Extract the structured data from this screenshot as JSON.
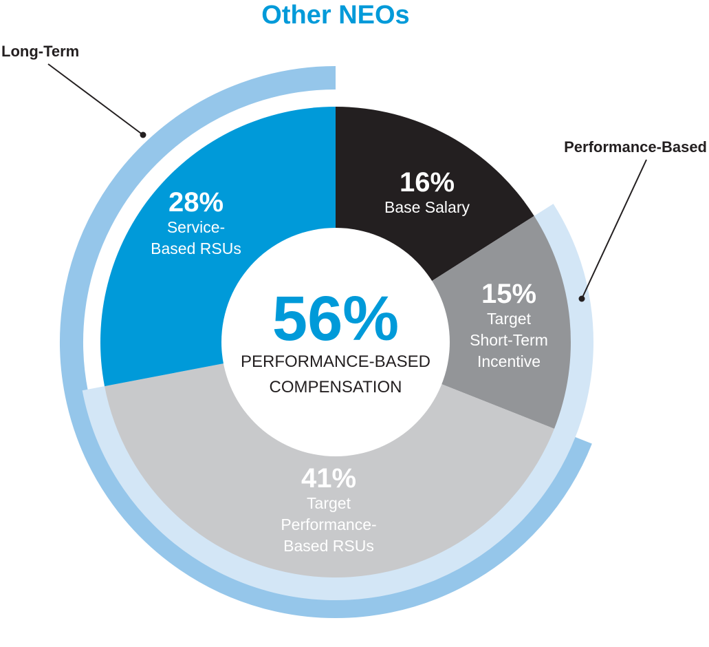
{
  "chart_data": {
    "type": "pie",
    "title": "Other NEOs",
    "colors": {
      "title": "#009ad9",
      "base_salary": "#231f20",
      "target_sti": "#939598",
      "target_perf_rsus": "#c8c9cb",
      "service_rsus": "#009ad9",
      "ring_long_term": "#95c6ea",
      "ring_performance": "#d3e6f6",
      "center_value": "#009ad9",
      "center_text": "#231f20"
    },
    "slices": [
      {
        "pct": "16%",
        "value": 16,
        "label_lines": [
          "Base Salary"
        ]
      },
      {
        "pct": "15%",
        "value": 15,
        "label_lines": [
          "Target",
          "Short-Term",
          "Incentive"
        ]
      },
      {
        "pct": "41%",
        "value": 41,
        "label_lines": [
          "Target",
          "Performance-",
          "Based RSUs"
        ]
      },
      {
        "pct": "28%",
        "value": 28,
        "label_lines": [
          "Service-",
          "Based RSUs"
        ]
      }
    ],
    "rings": [
      {
        "label": "Long-Term",
        "value": 69
      },
      {
        "label": "Performance-Based",
        "value": 56
      }
    ],
    "center": {
      "value": "56%",
      "line1": "PERFORMANCE-BASED",
      "line2": "COMPENSATION"
    }
  }
}
